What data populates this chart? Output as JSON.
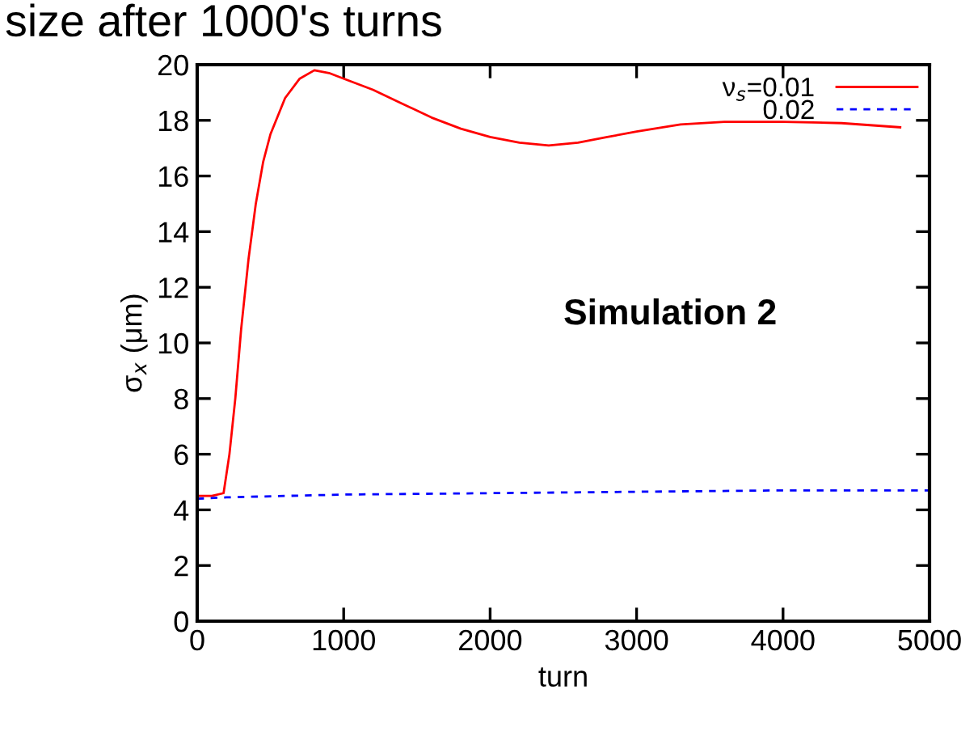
{
  "chart_data": {
    "type": "line",
    "title": "size after 1000's turns",
    "xlabel": "turn",
    "ylabel": "σ$_{x}$ (μm)",
    "annotations": [
      "Simulation 2"
    ],
    "xlim": [
      0,
      5000
    ],
    "xticks": [
      0,
      1000,
      2000,
      3000,
      4000,
      5000
    ],
    "ylim": [
      0,
      20
    ],
    "yticks": [
      0,
      2,
      4,
      6,
      8,
      10,
      12,
      14,
      16,
      18,
      20
    ],
    "grid": false,
    "legend": "top right",
    "series": [
      {
        "name": "ν$_{s}$=0.01",
        "color": "#ff0000",
        "line_style": "solid",
        "x": [
          0,
          100,
          180,
          220,
          260,
          300,
          350,
          400,
          450,
          500,
          600,
          700,
          800,
          900,
          1000,
          1200,
          1400,
          1600,
          1800,
          2000,
          2200,
          2400,
          2600,
          2800,
          3000,
          3300,
          3600,
          4000,
          4400,
          4800
        ],
        "values": [
          4.5,
          4.5,
          4.6,
          6,
          8,
          10.5,
          13,
          15,
          16.5,
          17.5,
          18.8,
          19.5,
          19.8,
          19.7,
          19.5,
          19.1,
          18.6,
          18.1,
          17.7,
          17.4,
          17.2,
          17.1,
          17.2,
          17.4,
          17.6,
          17.85,
          17.95,
          17.95,
          17.9,
          17.75
        ]
      },
      {
        "name": "0.02",
        "color": "#0000ff",
        "line_style": "dashed",
        "x": [
          0,
          200,
          1000,
          2000,
          3000,
          4000,
          5000
        ],
        "values": [
          4.4,
          4.45,
          4.55,
          4.6,
          4.65,
          4.7,
          4.7
        ]
      }
    ]
  }
}
